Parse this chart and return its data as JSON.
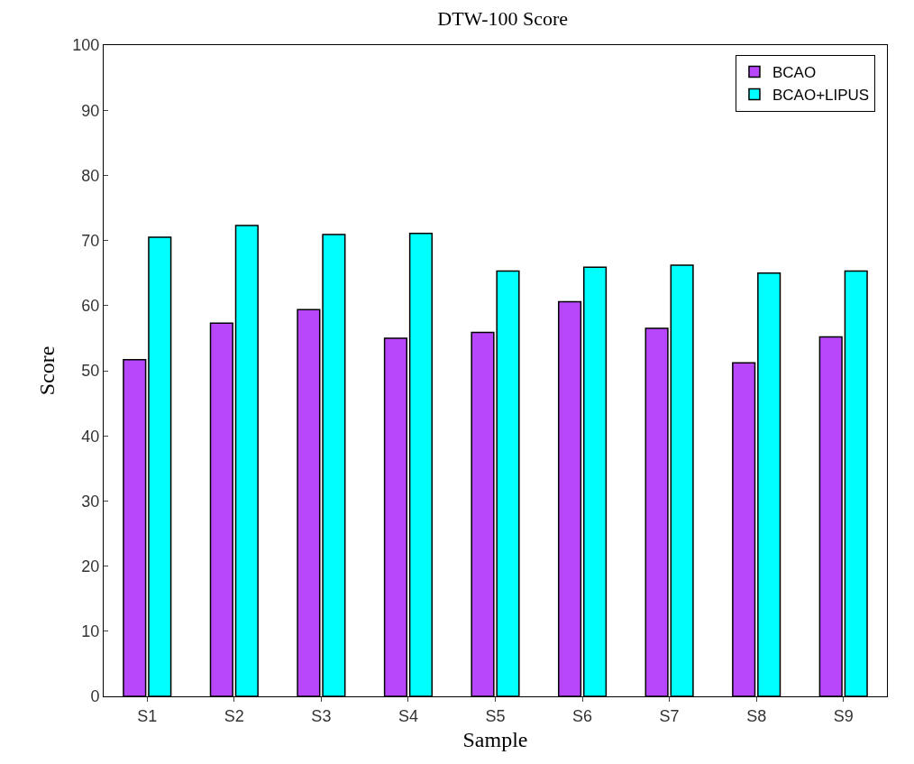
{
  "chart_data": {
    "type": "bar",
    "title": "DTW-100 Score",
    "xlabel": "Sample",
    "ylabel": "Score",
    "categories": [
      "S1",
      "S2",
      "S3",
      "S4",
      "S5",
      "S6",
      "S7",
      "S8",
      "S9"
    ],
    "series": [
      {
        "name": "BCAO",
        "color": "#b847fc",
        "values": [
          51.7,
          57.3,
          59.4,
          55.0,
          55.9,
          60.6,
          56.5,
          51.2,
          55.2
        ]
      },
      {
        "name": "BCAO+LIPUS",
        "color": "#00ffff",
        "values": [
          70.5,
          72.3,
          70.9,
          71.1,
          65.3,
          65.9,
          66.2,
          65.0,
          65.3
        ]
      }
    ],
    "ylim": [
      0,
      100
    ],
    "yticks": [
      0,
      10,
      20,
      30,
      40,
      50,
      60,
      70,
      80,
      90,
      100
    ],
    "grid": false,
    "legend": "top right"
  }
}
